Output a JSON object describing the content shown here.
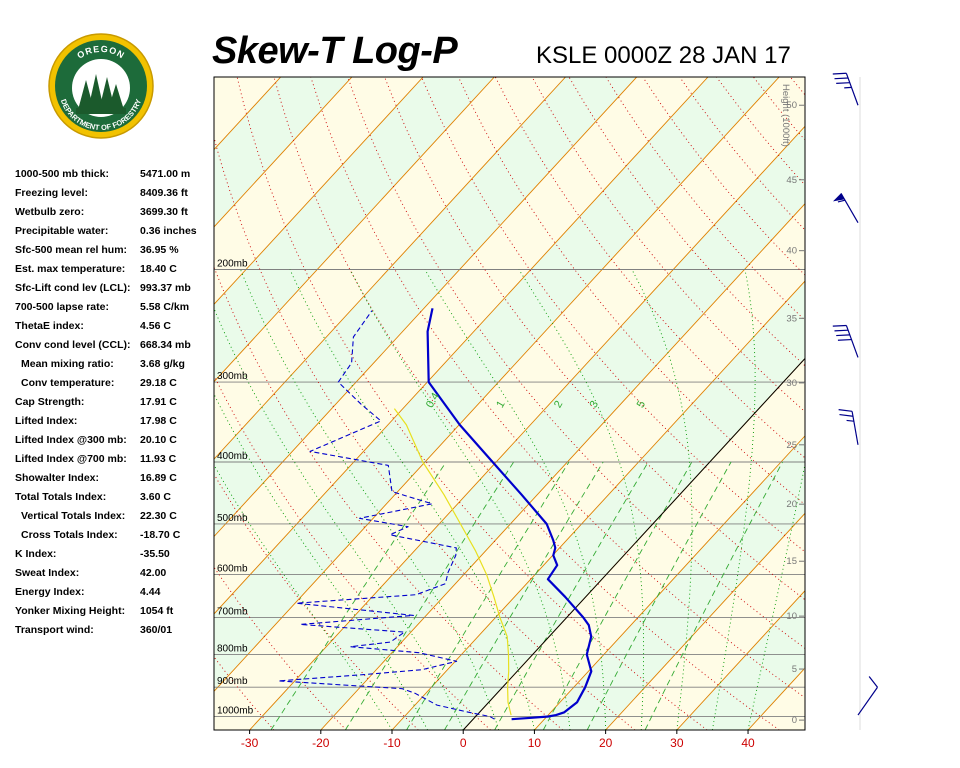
{
  "header": {
    "title": "Skew-T Log-P",
    "station": "KSLE 0000Z 28 JAN 17"
  },
  "logo": {
    "top_text": "OREGON",
    "bottom_text": "DEPARTMENT OF FORESTRY",
    "colors": {
      "ring": "#f2c200",
      "field": "#1d6b3a",
      "sky": "#ffffff",
      "trees": "#1b5a2c"
    }
  },
  "indices": [
    {
      "label": "1000-500 mb thick:",
      "value": "5471.00 m"
    },
    {
      "label": "Freezing level:",
      "value": "8409.36 ft"
    },
    {
      "label": "Wetbulb zero:",
      "value": "3699.30 ft"
    },
    {
      "label": "Precipitable water:",
      "value": "0.36 inches"
    },
    {
      "label": "Sfc-500 mean rel hum:",
      "value": "36.95 %"
    },
    {
      "label": "Est. max temperature:",
      "value": "18.40 C"
    },
    {
      "label": "Sfc-Lift cond lev (LCL):",
      "value": "993.37 mb"
    },
    {
      "label": "700-500 lapse rate:",
      "value": "5.58 C/km"
    },
    {
      "label": "ThetaE index:",
      "value": "4.56 C"
    },
    {
      "label": "Conv cond level (CCL):",
      "value": "668.34 mb"
    },
    {
      "label": "Mean mixing ratio:",
      "value": "3.68 g/kg",
      "indent": true
    },
    {
      "label": "Conv temperature:",
      "value": "29.18 C",
      "indent": true
    },
    {
      "label": "Cap Strength:",
      "value": "17.91 C"
    },
    {
      "label": "Lifted Index:",
      "value": "17.98 C"
    },
    {
      "label": "Lifted Index @300 mb:",
      "value": "20.10 C"
    },
    {
      "label": "Lifted Index @700 mb:",
      "value": "11.93 C"
    },
    {
      "label": "Showalter Index:",
      "value": "16.89 C"
    },
    {
      "label": "Total Totals Index:",
      "value": "3.60 C"
    },
    {
      "label": "Vertical Totals Index:",
      "value": "22.30 C",
      "indent": true
    },
    {
      "label": "Cross Totals Index:",
      "value": "-18.70 C",
      "indent": true
    },
    {
      "label": "K Index:",
      "value": "-35.50"
    },
    {
      "label": "Sweat Index:",
      "value": "42.00"
    },
    {
      "label": "Energy Index:",
      "value": "4.44"
    },
    {
      "label": "Yonker Mixing Height:",
      "value": "1054 ft"
    },
    {
      "label": "Transport wind:",
      "value": "360/01"
    }
  ],
  "chart_data": {
    "type": "line",
    "subtype": "skew-t log-p",
    "xlabel": "",
    "ylabel": "",
    "x_ticks": [
      -30,
      -20,
      -10,
      0,
      10,
      20,
      30,
      40
    ],
    "x_range": [
      -35,
      48
    ],
    "pressure_range_mb": [
      1050,
      100
    ],
    "pressure_levels": [
      {
        "p": 1000,
        "label": "1000mb"
      },
      {
        "p": 900,
        "label": "900mb"
      },
      {
        "p": 800,
        "label": "800mb"
      },
      {
        "p": 700,
        "label": "700mb"
      },
      {
        "p": 600,
        "label": "600mb"
      },
      {
        "p": 500,
        "label": "500mb"
      },
      {
        "p": 400,
        "label": "400mb"
      },
      {
        "p": 300,
        "label": "300mb"
      },
      {
        "p": 200,
        "label": "200mb"
      }
    ],
    "height_axis_label": "Height (1000ft)",
    "height_ticks": [
      0,
      5,
      10,
      15,
      20,
      25,
      30,
      35,
      40,
      45,
      50
    ],
    "mixing_ratio_labels": [
      "0.4",
      "1",
      "2",
      "3",
      "5"
    ],
    "isotherm_step_c": 10,
    "colors": {
      "temperature": "#0000cc",
      "dewpoint": "#0000cc",
      "parcel": "#e8e020",
      "isotherms": "#e08000",
      "dry_adiabats": "#cc0000",
      "moist_adiabats": "#009900",
      "mixing_ratio": "#33aa33",
      "isobars": "#808080",
      "band_warm": "#fffce6",
      "band_cool": "#eafbea",
      "freezing_line": "#000000",
      "x_tick_labels": "#cc0000"
    },
    "series": [
      {
        "key": "temperature",
        "style": "solid",
        "points": [
          {
            "p": 1010,
            "t": 5.4
          },
          {
            "p": 1005,
            "t": 8.0
          },
          {
            "p": 1000,
            "t": 10.2
          },
          {
            "p": 995,
            "t": 11.1
          },
          {
            "p": 985,
            "t": 11.9
          },
          {
            "p": 950,
            "t": 12.4
          },
          {
            "p": 900,
            "t": 11.6
          },
          {
            "p": 850,
            "t": 10.4
          },
          {
            "p": 800,
            "t": 7.6
          },
          {
            "p": 750,
            "t": 5.9
          },
          {
            "p": 720,
            "t": 4.1
          },
          {
            "p": 700,
            "t": 2.3
          },
          {
            "p": 650,
            "t": -2.9
          },
          {
            "p": 610,
            "t": -7.6
          },
          {
            "p": 580,
            "t": -8.1
          },
          {
            "p": 560,
            "t": -9.9
          },
          {
            "p": 545,
            "t": -10.6
          },
          {
            "p": 530,
            "t": -11.9
          },
          {
            "p": 500,
            "t": -14.9
          },
          {
            "p": 450,
            "t": -22.2
          },
          {
            "p": 400,
            "t": -30.5
          },
          {
            "p": 350,
            "t": -39.9
          },
          {
            "p": 300,
            "t": -49.8
          },
          {
            "p": 250,
            "t": -56.5
          },
          {
            "p": 230,
            "t": -58.8
          }
        ]
      },
      {
        "key": "dewpoint",
        "style": "dashed",
        "points": [
          {
            "p": 1010,
            "t": 3.0
          },
          {
            "p": 1000,
            "t": 2.0
          },
          {
            "p": 985,
            "t": -1.5
          },
          {
            "p": 960,
            "t": -6.9
          },
          {
            "p": 920,
            "t": -11.5
          },
          {
            "p": 905,
            "t": -13.9
          },
          {
            "p": 880,
            "t": -32.3
          },
          {
            "p": 860,
            "t": -21.1
          },
          {
            "p": 845,
            "t": -13.6
          },
          {
            "p": 820,
            "t": -9.8
          },
          {
            "p": 795,
            "t": -16.2
          },
          {
            "p": 778,
            "t": -26.6
          },
          {
            "p": 765,
            "t": -21.6
          },
          {
            "p": 738,
            "t": -20.9
          },
          {
            "p": 718,
            "t": -36.5
          },
          {
            "p": 695,
            "t": -21.8
          },
          {
            "p": 665,
            "t": -39.8
          },
          {
            "p": 645,
            "t": -24.1
          },
          {
            "p": 620,
            "t": -21.4
          },
          {
            "p": 595,
            "t": -22.5
          },
          {
            "p": 560,
            "t": -23.6
          },
          {
            "p": 545,
            "t": -24.5
          },
          {
            "p": 520,
            "t": -35.5
          },
          {
            "p": 505,
            "t": -34.0
          },
          {
            "p": 490,
            "t": -41.9
          },
          {
            "p": 465,
            "t": -33.6
          },
          {
            "p": 445,
            "t": -40.8
          },
          {
            "p": 405,
            "t": -44.7
          },
          {
            "p": 385,
            "t": -57.5
          },
          {
            "p": 345,
            "t": -51.5
          },
          {
            "p": 325,
            "t": -56.4
          },
          {
            "p": 300,
            "t": -62.5
          },
          {
            "p": 280,
            "t": -63.1
          },
          {
            "p": 255,
            "t": -66.2
          },
          {
            "p": 232,
            "t": -67.0
          }
        ]
      },
      {
        "key": "parcel",
        "style": "solid",
        "points": [
          {
            "p": 995,
            "t": 4.8
          },
          {
            "p": 950,
            "t": 2.7
          },
          {
            "p": 900,
            "t": 0.7
          },
          {
            "p": 850,
            "t": -1.2
          },
          {
            "p": 800,
            "t": -3.4
          },
          {
            "p": 750,
            "t": -5.9
          },
          {
            "p": 700,
            "t": -9.4
          },
          {
            "p": 650,
            "t": -12.9
          },
          {
            "p": 600,
            "t": -16.8
          },
          {
            "p": 550,
            "t": -21.5
          },
          {
            "p": 500,
            "t": -27.0
          },
          {
            "p": 450,
            "t": -33.1
          },
          {
            "p": 400,
            "t": -40.3
          },
          {
            "p": 350,
            "t": -47.4
          },
          {
            "p": 330,
            "t": -51.2
          }
        ]
      }
    ],
    "wind_barbs": [
      {
        "height_kft": 50,
        "dir_deg": 340,
        "speed_kt": 35
      },
      {
        "height_kft": 42,
        "dir_deg": 330,
        "speed_kt": 55
      },
      {
        "height_kft": 32,
        "dir_deg": 340,
        "speed_kt": 40
      },
      {
        "height_kft": 25,
        "dir_deg": 350,
        "speed_kt": 25
      },
      {
        "height_kft": 0.5,
        "dir_deg": 35,
        "speed_kt": 10
      }
    ]
  }
}
